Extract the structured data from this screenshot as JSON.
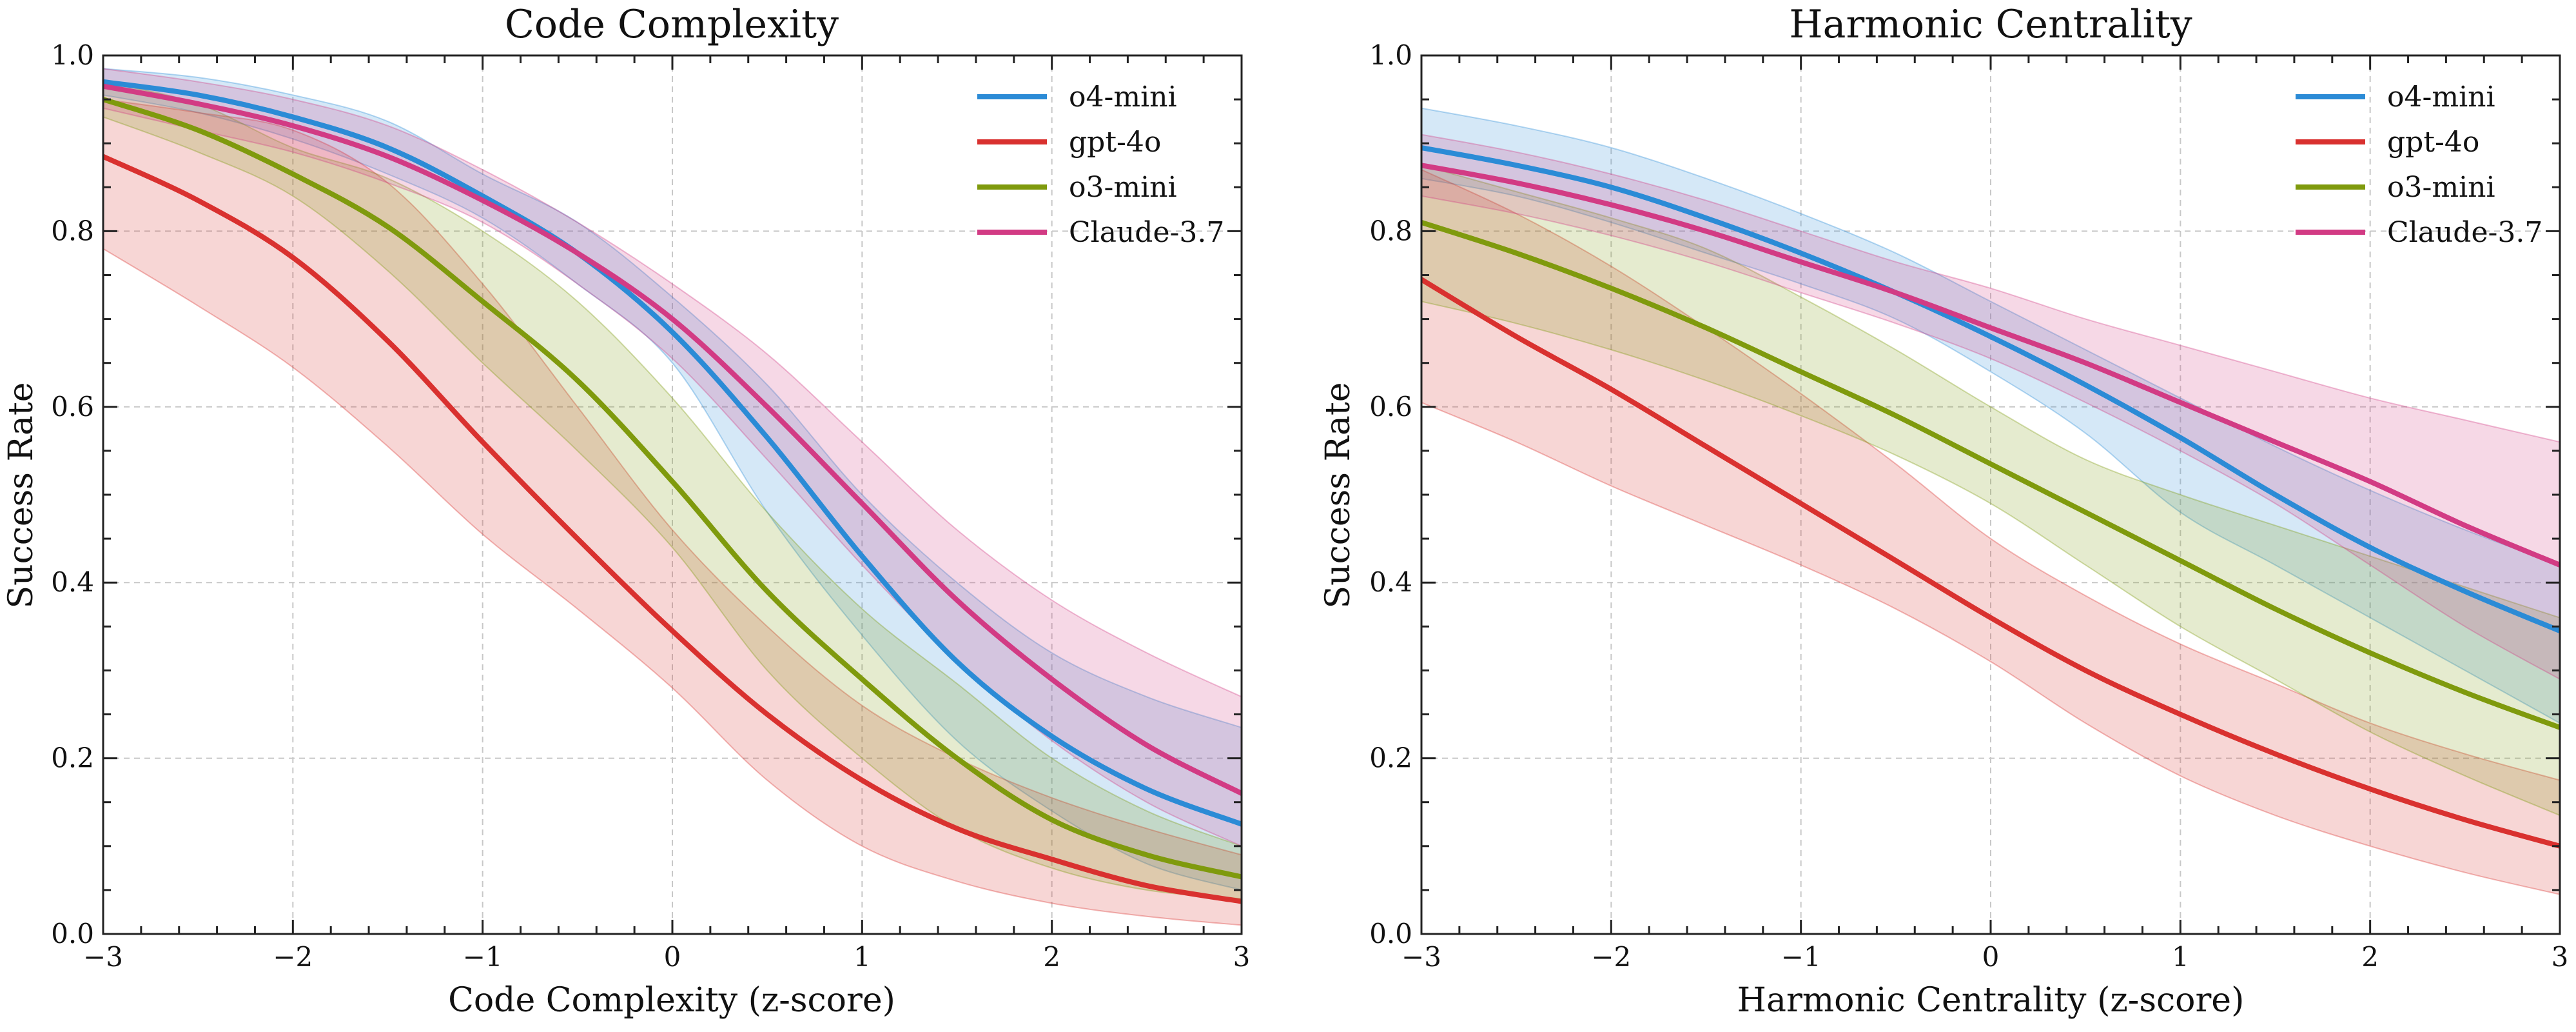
{
  "colors": {
    "o4-mini": "#2b8bd6",
    "gpt-4o": "#d9312f",
    "o3-mini": "#7f9a0d",
    "Claude-3.7": "#d23b84"
  },
  "chart_data": [
    {
      "type": "line",
      "title": "Code Complexity",
      "xlabel": "Code Complexity (z-score)",
      "ylabel": "Success Rate",
      "xlim": [
        -3,
        3
      ],
      "ylim": [
        0,
        1
      ],
      "xticks": [
        -3,
        -2,
        -1,
        0,
        1,
        2,
        3
      ],
      "xtick_labels": [
        "−3",
        "−2",
        "−1",
        "0",
        "1",
        "2",
        "3"
      ],
      "yticks": [
        0,
        0.2,
        0.4,
        0.6,
        0.8,
        1.0
      ],
      "ytick_labels": [
        "0.0",
        "0.2",
        "0.4",
        "0.6",
        "0.8",
        "1.0"
      ],
      "grid": true,
      "legend_position": "top-right",
      "x": [
        -3,
        -2.5,
        -2,
        -1.5,
        -1,
        -0.5,
        0,
        0.5,
        1,
        1.5,
        2,
        2.5,
        3
      ],
      "series": [
        {
          "name": "o4-mini",
          "values": [
            0.97,
            0.955,
            0.93,
            0.895,
            0.84,
            0.775,
            0.685,
            0.565,
            0.43,
            0.31,
            0.225,
            0.165,
            0.125
          ],
          "lower": [
            0.955,
            0.935,
            0.905,
            0.865,
            0.815,
            0.74,
            0.65,
            0.48,
            0.34,
            0.22,
            0.14,
            0.08,
            0.05
          ],
          "upper": [
            0.985,
            0.975,
            0.955,
            0.925,
            0.865,
            0.81,
            0.725,
            0.625,
            0.5,
            0.4,
            0.32,
            0.27,
            0.235
          ]
        },
        {
          "name": "gpt-4o",
          "values": [
            0.885,
            0.835,
            0.77,
            0.675,
            0.56,
            0.45,
            0.345,
            0.25,
            0.175,
            0.12,
            0.085,
            0.055,
            0.037
          ],
          "lower": [
            0.78,
            0.715,
            0.645,
            0.555,
            0.455,
            0.37,
            0.28,
            0.175,
            0.1,
            0.06,
            0.035,
            0.02,
            0.01
          ],
          "upper": [
            0.95,
            0.935,
            0.915,
            0.855,
            0.74,
            0.6,
            0.46,
            0.35,
            0.26,
            0.2,
            0.155,
            0.12,
            0.09
          ]
        },
        {
          "name": "o3-mini",
          "values": [
            0.95,
            0.915,
            0.865,
            0.805,
            0.72,
            0.63,
            0.515,
            0.39,
            0.29,
            0.2,
            0.13,
            0.09,
            0.065
          ],
          "lower": [
            0.93,
            0.89,
            0.84,
            0.755,
            0.65,
            0.55,
            0.44,
            0.3,
            0.2,
            0.12,
            0.075,
            0.05,
            0.04
          ],
          "upper": [
            0.97,
            0.945,
            0.895,
            0.86,
            0.8,
            0.72,
            0.61,
            0.48,
            0.37,
            0.285,
            0.2,
            0.14,
            0.1
          ]
        },
        {
          "name": "Claude-3.7",
          "values": [
            0.965,
            0.945,
            0.92,
            0.885,
            0.835,
            0.775,
            0.7,
            0.6,
            0.49,
            0.38,
            0.29,
            0.215,
            0.16
          ],
          "lower": [
            0.94,
            0.915,
            0.89,
            0.855,
            0.81,
            0.74,
            0.655,
            0.54,
            0.42,
            0.31,
            0.22,
            0.15,
            0.1
          ],
          "upper": [
            0.985,
            0.97,
            0.95,
            0.92,
            0.87,
            0.81,
            0.74,
            0.66,
            0.56,
            0.46,
            0.38,
            0.32,
            0.27
          ]
        }
      ]
    },
    {
      "type": "line",
      "title": "Harmonic Centrality",
      "xlabel": "Harmonic Centrality (z-score)",
      "ylabel": "Success Rate",
      "xlim": [
        -3,
        3
      ],
      "ylim": [
        0,
        1
      ],
      "xticks": [
        -3,
        -2,
        -1,
        0,
        1,
        2,
        3
      ],
      "xtick_labels": [
        "−3",
        "−2",
        "−1",
        "0",
        "1",
        "2",
        "3"
      ],
      "yticks": [
        0,
        0.2,
        0.4,
        0.6,
        0.8,
        1.0
      ],
      "ytick_labels": [
        "0.0",
        "0.2",
        "0.4",
        "0.6",
        "0.8",
        "1.0"
      ],
      "grid": true,
      "legend_position": "top-right",
      "x": [
        -3,
        -2.5,
        -2,
        -1.5,
        -1,
        -0.5,
        0,
        0.5,
        1,
        1.5,
        2,
        2.5,
        3
      ],
      "series": [
        {
          "name": "o4-mini",
          "values": [
            0.895,
            0.875,
            0.85,
            0.815,
            0.775,
            0.73,
            0.68,
            0.625,
            0.565,
            0.5,
            0.44,
            0.39,
            0.345
          ],
          "lower": [
            0.86,
            0.84,
            0.81,
            0.775,
            0.74,
            0.7,
            0.64,
            0.57,
            0.48,
            0.42,
            0.36,
            0.3,
            0.24
          ],
          "upper": [
            0.94,
            0.92,
            0.895,
            0.86,
            0.82,
            0.775,
            0.72,
            0.665,
            0.61,
            0.555,
            0.505,
            0.46,
            0.42
          ]
        },
        {
          "name": "gpt-4o",
          "values": [
            0.745,
            0.68,
            0.62,
            0.555,
            0.49,
            0.425,
            0.36,
            0.3,
            0.25,
            0.205,
            0.165,
            0.13,
            0.1
          ],
          "lower": [
            0.605,
            0.56,
            0.51,
            0.465,
            0.42,
            0.37,
            0.31,
            0.24,
            0.18,
            0.135,
            0.1,
            0.07,
            0.045
          ],
          "upper": [
            0.87,
            0.82,
            0.76,
            0.69,
            0.615,
            0.535,
            0.45,
            0.385,
            0.33,
            0.285,
            0.24,
            0.205,
            0.175
          ]
        },
        {
          "name": "o3-mini",
          "values": [
            0.81,
            0.775,
            0.735,
            0.69,
            0.64,
            0.59,
            0.535,
            0.48,
            0.425,
            0.37,
            0.32,
            0.275,
            0.235
          ],
          "lower": [
            0.72,
            0.695,
            0.665,
            0.63,
            0.59,
            0.545,
            0.49,
            0.42,
            0.35,
            0.29,
            0.23,
            0.18,
            0.135
          ],
          "upper": [
            0.875,
            0.845,
            0.815,
            0.78,
            0.725,
            0.665,
            0.6,
            0.54,
            0.5,
            0.465,
            0.43,
            0.395,
            0.36
          ]
        },
        {
          "name": "Claude-3.7",
          "values": [
            0.875,
            0.855,
            0.83,
            0.8,
            0.765,
            0.73,
            0.69,
            0.65,
            0.605,
            0.56,
            0.515,
            0.465,
            0.42
          ],
          " lower": [],
          "lower": [
            0.84,
            0.82,
            0.795,
            0.765,
            0.73,
            0.695,
            0.655,
            0.605,
            0.55,
            0.49,
            0.42,
            0.35,
            0.29
          ],
          "upper": [
            0.91,
            0.89,
            0.865,
            0.835,
            0.8,
            0.765,
            0.735,
            0.7,
            0.67,
            0.64,
            0.61,
            0.585,
            0.56
          ]
        }
      ]
    }
  ]
}
